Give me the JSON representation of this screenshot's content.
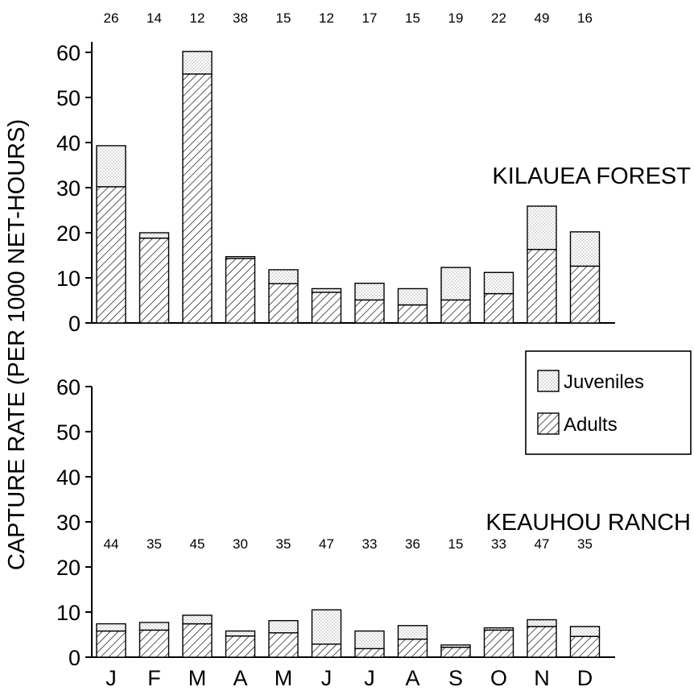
{
  "chart_data": {
    "type": "bar",
    "stacked": true,
    "ylabel": "CAPTURE RATE (PER 1000 NET-HOURS)",
    "categories": [
      "J",
      "F",
      "M",
      "A",
      "M",
      "J",
      "J",
      "A",
      "S",
      "O",
      "N",
      "D"
    ],
    "ylim": [
      0,
      60
    ],
    "yticks": [
      0,
      10,
      20,
      30,
      40,
      50,
      60
    ],
    "grid": false,
    "legend": {
      "placement": "right",
      "entries": [
        {
          "label": "Juveniles",
          "pattern": "dotted"
        },
        {
          "label": "Adults",
          "pattern": "hatched"
        }
      ]
    },
    "panels": [
      {
        "label": "KILAUEA FOREST",
        "counts": [
          "26",
          "14",
          "12",
          "38",
          "15",
          "12",
          "17",
          "15",
          "19",
          "22",
          "49",
          "16"
        ],
        "series": [
          {
            "name": "Adults",
            "values": [
              30.2,
              18.8,
              55.2,
              14.3,
              8.7,
              6.8,
              5.1,
              4.0,
              5.1,
              6.5,
              16.3,
              12.6
            ]
          },
          {
            "name": "Juveniles",
            "values": [
              9.1,
              1.2,
              5.0,
              0.4,
              3.1,
              0.8,
              3.7,
              3.6,
              7.2,
              4.7,
              9.6,
              7.6
            ]
          }
        ]
      },
      {
        "label": "KEAUHOU RANCH",
        "counts": [
          "44",
          "35",
          "45",
          "30",
          "35",
          "47",
          "33",
          "36",
          "15",
          "33",
          "47",
          "35"
        ],
        "series": [
          {
            "name": "Adults",
            "values": [
              5.8,
              6.0,
              7.4,
              4.7,
              5.4,
              2.9,
              1.9,
              4.0,
              2.2,
              6.0,
              6.8,
              4.6
            ]
          },
          {
            "name": "Juveniles",
            "values": [
              1.6,
              1.7,
              1.9,
              1.1,
              2.7,
              7.6,
              3.9,
              3.0,
              0.5,
              0.5,
              1.5,
              2.2
            ]
          }
        ]
      }
    ]
  }
}
